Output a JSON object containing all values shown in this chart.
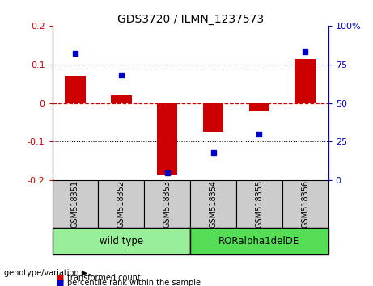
{
  "title": "GDS3720 / ILMN_1237573",
  "samples": [
    "GSM518351",
    "GSM518352",
    "GSM518353",
    "GSM518354",
    "GSM518355",
    "GSM518356"
  ],
  "transformed_count": [
    0.07,
    0.02,
    -0.185,
    -0.075,
    -0.022,
    0.115
  ],
  "percentile_rank": [
    82,
    68,
    5,
    18,
    30,
    83
  ],
  "ylim_left": [
    -0.2,
    0.2
  ],
  "ylim_right": [
    0,
    100
  ],
  "yticks_left": [
    -0.2,
    -0.1,
    0.0,
    0.1,
    0.2
  ],
  "yticks_right": [
    0,
    25,
    50,
    75,
    100
  ],
  "ytick_labels_right": [
    "0",
    "25",
    "50",
    "75",
    "100%"
  ],
  "bar_color": "#cc0000",
  "dot_color": "#0000cc",
  "zero_line_color": "#cc0000",
  "grid_color": "#000000",
  "group1_label": "wild type",
  "group2_label": "RORalpha1delDE",
  "group1_count": 3,
  "group2_count": 3,
  "group1_color": "#99ee99",
  "group2_color": "#55dd55",
  "sample_box_color": "#cccccc",
  "genotype_label": "genotype/variation",
  "legend_bar_label": "transformed count",
  "legend_dot_label": "percentile rank within the sample",
  "bar_width": 0.45
}
